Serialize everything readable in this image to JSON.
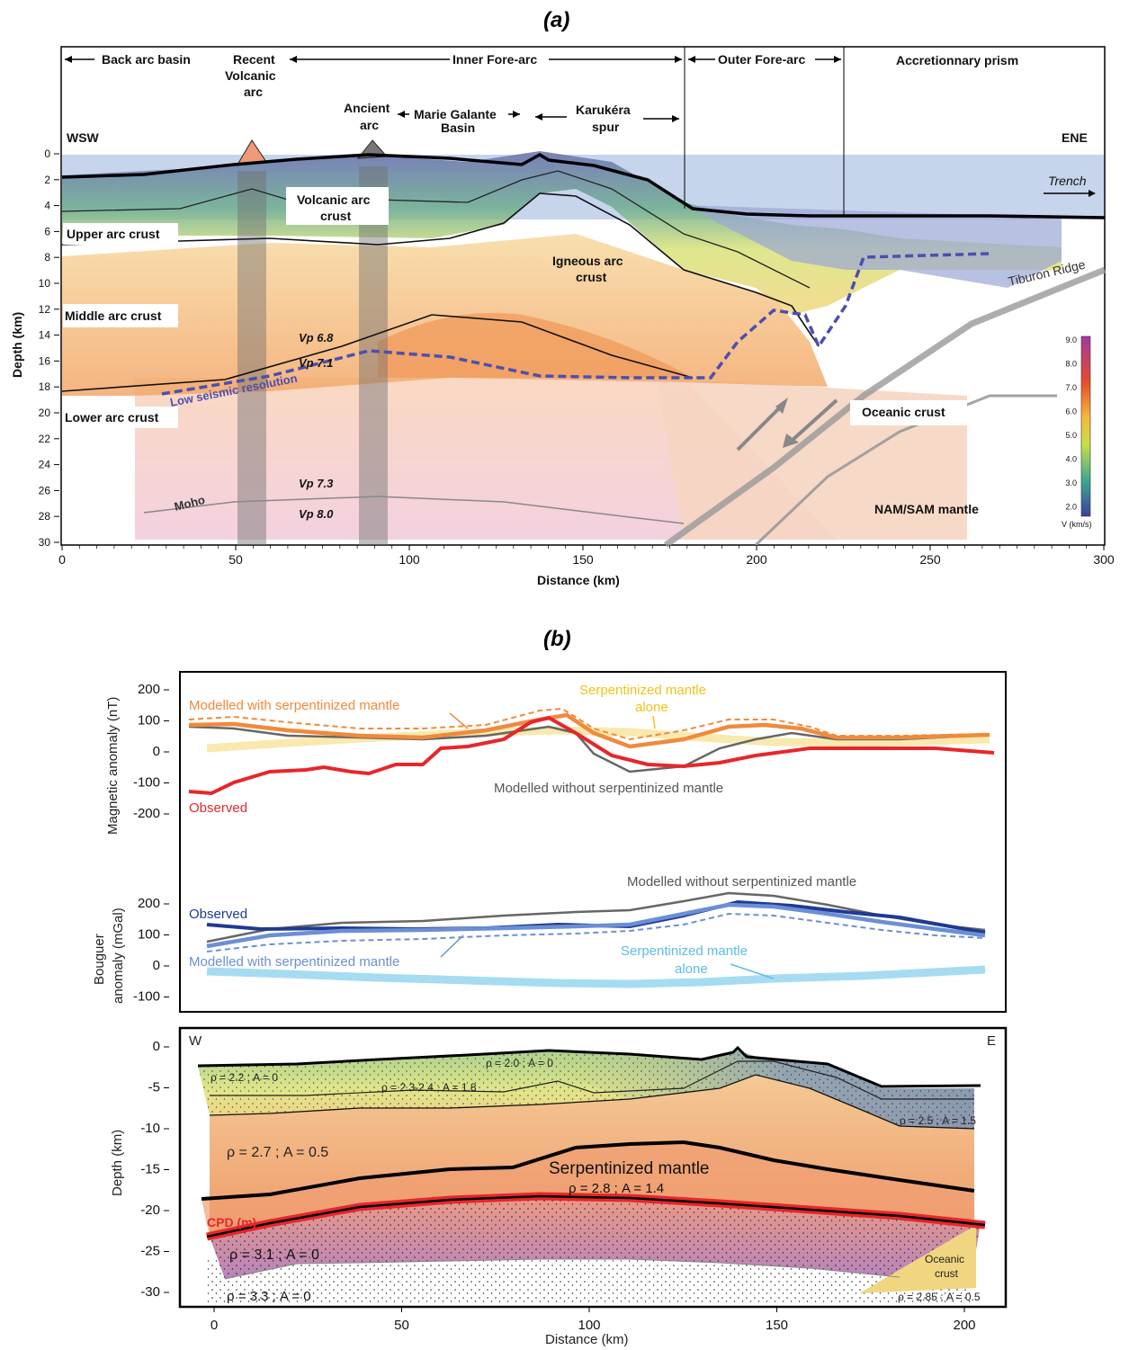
{
  "panel_a": {
    "label": "(a)",
    "regions": {
      "back_arc": "Back arc basin",
      "recent_volcanic": [
        "Recent",
        "Volcanic",
        "arc"
      ],
      "inner_fore_arc": "Inner Fore-arc",
      "outer_fore_arc": "Outer Fore-arc",
      "accretionary": "Accretionnary prism"
    },
    "features": {
      "ancient_arc": [
        "Ancient",
        "arc"
      ],
      "marie_galante": [
        "Marie Galante",
        "Basin"
      ],
      "karukera": [
        "Karukéra",
        "spur"
      ],
      "wsw": "WSW",
      "ene": "ENE",
      "trench": "Trench",
      "volcanic_arc_crust": [
        "Volcanic arc",
        "crust"
      ],
      "upper_arc_crust": "Upper arc crust",
      "igneous_arc_crust": [
        "Igneous arc",
        "crust"
      ],
      "middle_arc_crust": "Middle arc crust",
      "lower_arc_crust": "Lower arc crust",
      "low_seismic": "Low seismic resolution",
      "oceanic_crust": "Oceanic crust",
      "tiburon": "Tiburon Ridge",
      "nam_sam": "NAM/SAM mantle",
      "moho": "Moho",
      "vp68": "Vp 6.8",
      "vp71": "Vp 7.1",
      "vp73": "Vp 7.3",
      "vp80": "Vp 8.0"
    },
    "ylabel": "Depth (km)",
    "xlabel": "Distance (km)",
    "y_ticks": [
      "0",
      "2",
      "4",
      "6",
      "8",
      "10",
      "12",
      "14",
      "16",
      "18",
      "20",
      "22",
      "24",
      "26",
      "28",
      "30"
    ],
    "x_ticks": [
      "0",
      "50",
      "100",
      "150",
      "200",
      "250",
      "300"
    ],
    "colorbar": {
      "ticks": [
        "9.0",
        "8.0",
        "7.0",
        "6.0",
        "5.0",
        "4.0",
        "3.0",
        "2.0"
      ],
      "label": "V (km/s)"
    }
  },
  "panel_b": {
    "label": "(b)",
    "mag": {
      "ylabel": "Magnetic anomaly (nT)",
      "y_ticks": [
        "200",
        "100",
        "0",
        "-100",
        "-200"
      ],
      "labels": {
        "modelled_with": "Modelled with serpentinized mantle",
        "serp_alone": [
          "Serpentinized mantle",
          "alone"
        ],
        "modelled_without": "Modelled without serpentinized mantle",
        "observed": "Observed"
      },
      "colors": {
        "observed": "#e8262a",
        "modelled_with": "#f08a3c",
        "without": "#666666",
        "alone": "#f7e39a"
      }
    },
    "bouguer": {
      "ylabel": [
        "Bouguer",
        "anomaly (mGal)"
      ],
      "y_ticks": [
        "200",
        "100",
        "0",
        "-100"
      ],
      "labels": {
        "modelled_without": "Modelled without serpentinized mantle",
        "observed": "Observed",
        "modelled_with": "Modelled with serpentinized mantle",
        "serp_alone": [
          "Serpentinized mantle",
          "alone"
        ]
      },
      "colors": {
        "observed": "#1f3a93",
        "modelled_with": "#6b8fd6",
        "without": "#666666",
        "alone": "#a6dcf2"
      }
    },
    "section": {
      "ylabel": "Depth (km)",
      "y_ticks": [
        "0",
        "-5",
        "-10",
        "-15",
        "-20",
        "-25",
        "-30"
      ],
      "x_ticks": [
        "0",
        "50",
        "100",
        "150",
        "200"
      ],
      "xlabel": "Distance (km)",
      "w": "W",
      "e": "E",
      "labels": {
        "l1": "ρ = 2.2 ; A = 0",
        "l2": "ρ = 2.0 ; A = 0",
        "l3": "ρ = 2.3-2.4 ; A = 1.8",
        "l4": "ρ = 2.5 ; A = 1.5",
        "l5": "ρ = 2.7 ; A = 0.5",
        "serp": "Serpentinized mantle",
        "l6": "ρ = 2.8 ; A = 1.4",
        "cpd": "CPD (m)",
        "l7": "ρ = 3.1 ; A = 0",
        "l8": "ρ = 3.3 ; A = 0",
        "oc": [
          "Oceanic",
          "crust"
        ],
        "l9": "ρ = 2.85 ; A = 0.5"
      }
    }
  }
}
